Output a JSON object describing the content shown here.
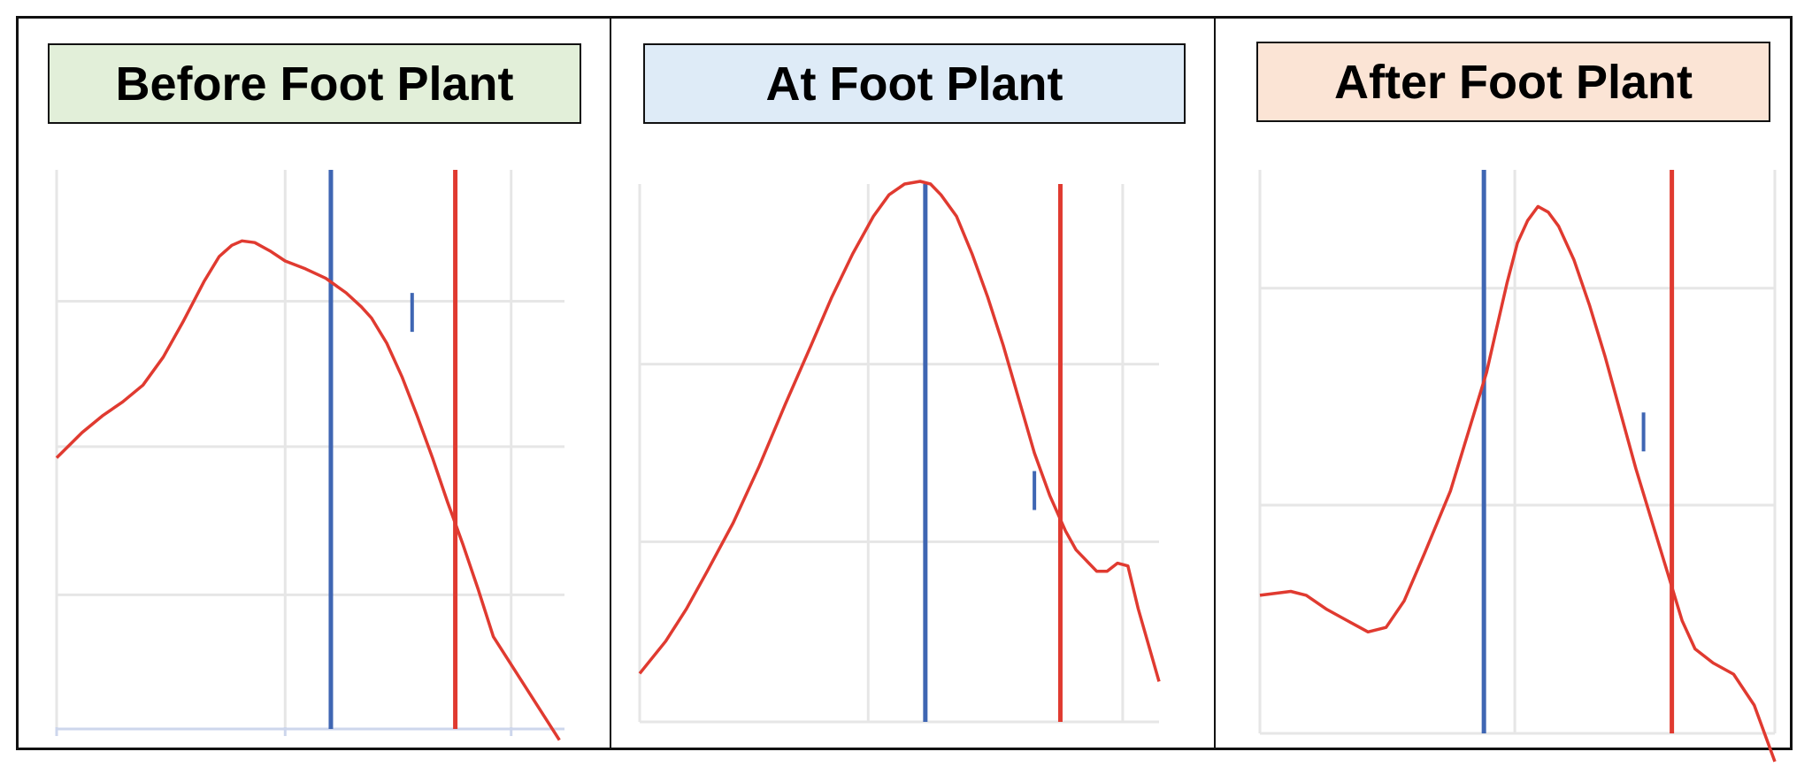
{
  "colors": {
    "curve": "#e03a30",
    "blue_line": "#3f66b3",
    "red_line": "#e03a30",
    "grid": "#e6e6e6",
    "axis": "#cdd6ec"
  },
  "chart_data": [
    {
      "type": "line",
      "title": "Before Foot Plant",
      "title_bg": "#e2efd9",
      "xlim": [
        0,
        100
      ],
      "ylim": [
        0,
        100
      ],
      "x_gridlines": [
        45,
        89.5
      ],
      "y_gridlines": [
        24,
        50.5,
        76.5
      ],
      "x_axis_line": true,
      "series": [
        {
          "values": [
            [
              0,
              48.5
            ],
            [
              5,
              53
            ],
            [
              9,
              56
            ],
            [
              13,
              58.5
            ],
            [
              17,
              61.5
            ],
            [
              21,
              66.5
            ],
            [
              25,
              73
            ],
            [
              29,
              80
            ],
            [
              32,
              84.5
            ],
            [
              34.5,
              86.5
            ],
            [
              36.5,
              87.3
            ],
            [
              39,
              87
            ],
            [
              42,
              85.5
            ],
            [
              45,
              83.7
            ],
            [
              49,
              82.3
            ],
            [
              53,
              80.6
            ],
            [
              57,
              78
            ],
            [
              60,
              75.5
            ],
            [
              62,
              73.5
            ],
            [
              65,
              69
            ],
            [
              68,
              63
            ],
            [
              71,
              56
            ],
            [
              74,
              48.5
            ],
            [
              77,
              40.5
            ],
            [
              80,
              33
            ],
            [
              83,
              25
            ],
            [
              86,
              16.5
            ],
            [
              99,
              -2
            ]
          ]
        }
      ],
      "vertical_lines": [
        {
          "color": "blue",
          "x": 54
        },
        {
          "color": "red",
          "x": 78.5
        }
      ],
      "tick_marker": {
        "x": 70,
        "y": 74.5
      }
    },
    {
      "type": "line",
      "title": "At Foot Plant",
      "title_bg": "#deebf7",
      "xlim": [
        0,
        100
      ],
      "ylim": [
        0,
        100
      ],
      "x_gridlines": [
        44,
        93
      ],
      "y_gridlines": [
        0,
        33.5,
        66.5
      ],
      "x_axis_line": false,
      "series": [
        {
          "values": [
            [
              0,
              9
            ],
            [
              5,
              15
            ],
            [
              9,
              21
            ],
            [
              13,
              28
            ],
            [
              18,
              37
            ],
            [
              23,
              47.5
            ],
            [
              28,
              59
            ],
            [
              33,
              70
            ],
            [
              37,
              79
            ],
            [
              41,
              87
            ],
            [
              45,
              94
            ],
            [
              48,
              98
            ],
            [
              51,
              100
            ],
            [
              54,
              100.5
            ],
            [
              56,
              100
            ],
            [
              58,
              98
            ],
            [
              61,
              94
            ],
            [
              64,
              87
            ],
            [
              67,
              79
            ],
            [
              70,
              70
            ],
            [
              73,
              60
            ],
            [
              76,
              50
            ],
            [
              79,
              42
            ],
            [
              82,
              35.5
            ],
            [
              84,
              32
            ],
            [
              86,
              30
            ],
            [
              88,
              28
            ],
            [
              90,
              28
            ],
            [
              92,
              29.5
            ],
            [
              94,
              29
            ],
            [
              96,
              21
            ],
            [
              100,
              7.5
            ]
          ]
        }
      ],
      "vertical_lines": [
        {
          "color": "blue",
          "x": 55
        },
        {
          "color": "red",
          "x": 81
        }
      ],
      "tick_marker": {
        "x": 76,
        "y": 43
      }
    },
    {
      "type": "line",
      "title": "After Foot Plant",
      "title_bg": "#fbe4d5",
      "xlim": [
        0,
        100
      ],
      "ylim": [
        0,
        100
      ],
      "x_gridlines": [
        49.5,
        100
      ],
      "y_gridlines": [
        0,
        40.5,
        79
      ],
      "x_axis_line": false,
      "series": [
        {
          "values": [
            [
              0,
              24.5
            ],
            [
              6,
              25.2
            ],
            [
              9,
              24.5
            ],
            [
              13,
              22
            ],
            [
              17,
              20
            ],
            [
              21,
              18
            ],
            [
              24.5,
              18.8
            ],
            [
              28,
              23.5
            ],
            [
              32,
              32
            ],
            [
              37,
              43
            ],
            [
              41,
              55
            ],
            [
              44,
              64
            ],
            [
              46,
              72
            ],
            [
              48,
              80
            ],
            [
              50,
              87
            ],
            [
              52,
              91
            ],
            [
              54,
              93.5
            ],
            [
              56,
              92.5
            ],
            [
              58,
              90
            ],
            [
              61,
              84
            ],
            [
              64,
              76
            ],
            [
              67,
              67
            ],
            [
              70,
              57
            ],
            [
              73,
              47
            ],
            [
              76,
              38
            ],
            [
              79,
              29
            ],
            [
              82,
              20
            ],
            [
              84.5,
              15
            ],
            [
              88,
              12.5
            ],
            [
              92,
              10.5
            ],
            [
              96,
              5
            ],
            [
              100,
              -5
            ]
          ]
        }
      ],
      "vertical_lines": [
        {
          "color": "blue",
          "x": 43.5
        },
        {
          "color": "red",
          "x": 80
        }
      ],
      "tick_marker": {
        "x": 74.5,
        "y": 53.5
      }
    }
  ]
}
